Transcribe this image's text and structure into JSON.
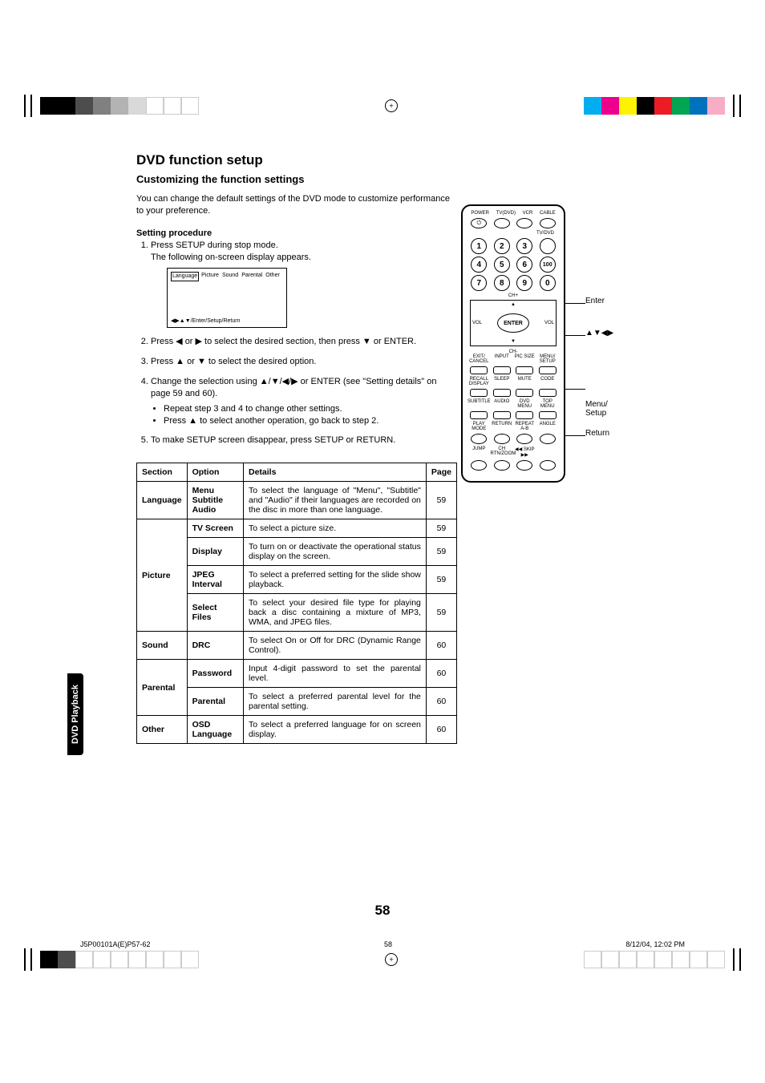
{
  "reg_colors_left": [
    "#000000",
    "#000000",
    "#4d4d4d",
    "#808080",
    "#b3b3b3",
    "#d9d9d9",
    "#ffffff",
    "#ffffff",
    "#ffffff"
  ],
  "reg_colors_right_top": [
    "#00aeef",
    "#ec008c",
    "#fff200",
    "#000000",
    "#ed1c24",
    "#00a651",
    "#0072bc",
    "#f7adc3"
  ],
  "reg_colors_left_bottom": [
    "#000000",
    "#4d4d4d",
    "#ffffff",
    "#ffffff",
    "#ffffff",
    "#ffffff",
    "#ffffff",
    "#ffffff",
    "#ffffff"
  ],
  "reg_colors_right_bottom": [
    "#ffffff",
    "#ffffff",
    "#ffffff",
    "#ffffff",
    "#ffffff",
    "#ffffff",
    "#ffffff",
    "#ffffff"
  ],
  "title": "DVD function setup",
  "subtitle": "Customizing the function settings",
  "intro": "You can change the default settings of the DVD mode to customize performance to your preference.",
  "procedure_heading": "Setting procedure",
  "steps": [
    {
      "text": "Press SETUP during stop mode.\nThe following on-screen display appears."
    },
    {
      "text": "Press ◀ or ▶ to select the desired section, then press ▼ or ENTER."
    },
    {
      "text": "Press ▲ or ▼ to select the desired option."
    },
    {
      "text": "Change the selection using ▲/▼/◀/▶ or ENTER (see \"Setting details\" on page 59 and 60).",
      "subs": [
        "Repeat step 3 and 4 to change other settings.",
        "Press ▲ to select another operation, go back to step 2."
      ]
    },
    {
      "text": "To make SETUP screen disappear, press SETUP or RETURN."
    }
  ],
  "osd": {
    "tabs": [
      "Language",
      "Picture",
      "Sound",
      "Parental",
      "Other"
    ],
    "footer": "◀▶▲▼/Enter/Setup/Return"
  },
  "table": {
    "headers": [
      "Section",
      "Option",
      "Details",
      "Page"
    ],
    "rows": [
      {
        "section": "Language",
        "span": 1,
        "option": "Menu\nSubtitle\nAudio",
        "details": "To select the language of \"Menu\", \"Subtitle\" and \"Audio\" if their languages are recorded on the disc in more than one language.",
        "page": "59"
      },
      {
        "section": "Picture",
        "span": 4,
        "option": "TV Screen",
        "details": "To select a picture size.",
        "page": "59"
      },
      {
        "section": "",
        "option": "Display",
        "details": "To turn on or deactivate the operational status display on the screen.",
        "page": "59"
      },
      {
        "section": "",
        "option": "JPEG Interval",
        "details": "To select a preferred setting for the slide show playback.",
        "page": "59"
      },
      {
        "section": "",
        "option": "Select Files",
        "details": "To select your desired file type for playing back a disc containing a mixture of MP3, WMA, and JPEG files.",
        "page": "59"
      },
      {
        "section": "Sound",
        "span": 1,
        "option": "DRC",
        "details": "To select On or Off for DRC (Dynamic Range Control).",
        "page": "60"
      },
      {
        "section": "Parental",
        "span": 2,
        "option": "Password",
        "details": "Input 4-digit password to set the parental level.",
        "page": "60"
      },
      {
        "section": "",
        "option": "Parental",
        "details": "To select a preferred parental level for the parental setting.",
        "page": "60"
      },
      {
        "section": "Other",
        "span": 1,
        "option": "OSD Language",
        "details": "To select a preferred language for on screen display.",
        "page": "60"
      }
    ]
  },
  "side_tab": "DVD Playback",
  "remote": {
    "top_labels": [
      "POWER",
      "TV(DVD)",
      "VCR",
      "CABLE"
    ],
    "tvdvd": "TV/DVD",
    "numbers": [
      [
        "1",
        "2",
        "3",
        ""
      ],
      [
        "4",
        "5",
        "6",
        "100"
      ],
      [
        "7",
        "8",
        "9",
        "0"
      ]
    ],
    "ch_plus": "CH+",
    "ch_minus": "CH-",
    "vol": "VOL",
    "enter": "ENTER",
    "row1_labels": [
      "EXIT/\nCANCEL",
      "INPUT",
      "PIC SIZE",
      "MENU/\nSETUP"
    ],
    "row2_labels": [
      "RECALL\nDISPLAY",
      "SLEEP",
      "MUTE",
      "CODE"
    ],
    "row3_labels": [
      "SUBTITLE",
      "AUDIO",
      "DVD MENU",
      "TOP MENU"
    ],
    "row4_labels": [
      "PLAY MODE",
      "RETURN",
      "REPEAT A-B",
      "ANGLE"
    ],
    "row5_labels": [
      "JUMP",
      "CH RTN/ZOOM",
      "◀◀ SKIP ▶▶",
      ""
    ],
    "callouts": {
      "enter": "Enter",
      "arrows": "▲▼◀▶",
      "menu": "Menu/\nSetup",
      "return": "Return"
    }
  },
  "page_number": "58",
  "footer": {
    "left": "J5P00101A(E)P57-62",
    "mid": "58",
    "right": "8/12/04, 12:02 PM"
  }
}
